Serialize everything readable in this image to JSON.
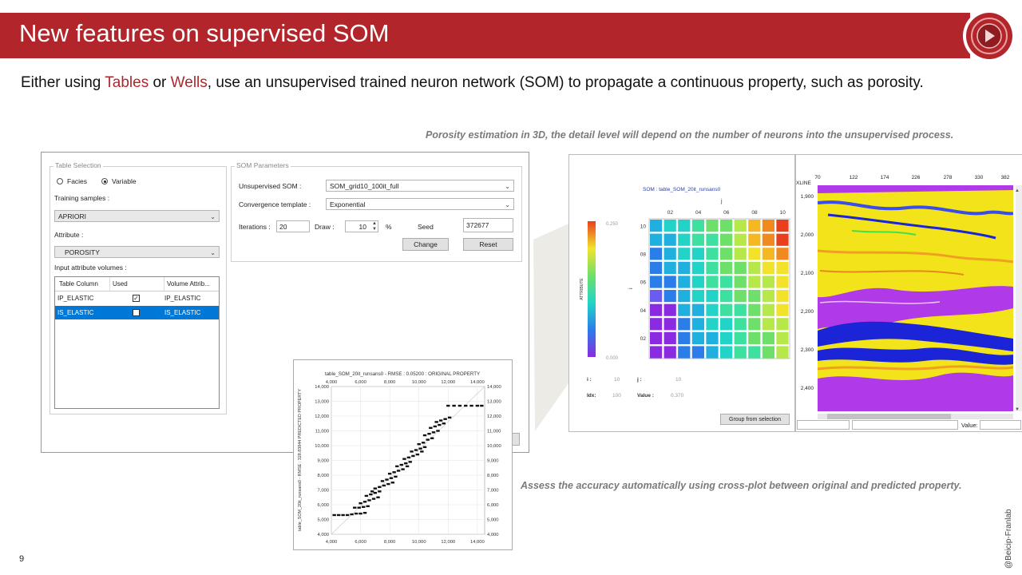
{
  "header": {
    "title": "New features on supervised SOM"
  },
  "intro": {
    "part1": "Either using ",
    "tables": "Tables",
    "part2": " or ",
    "wells": "Wells",
    "part3": ", use an unsupervised trained neuron network (SOM) to propagate a continuous property, such as porosity."
  },
  "caption_top": "Porosity estimation in 3D, the detail level will depend on the number of neurons into the unsupervised process.",
  "caption_bottom": "Assess the accuracy automatically using cross-plot between original and predicted property.",
  "slide_number": "9",
  "copyright": "@Beicip-Franlab",
  "dialog": {
    "table_selection": {
      "title": "Table Selection",
      "radio_facies": "Facies",
      "radio_variable": "Variable",
      "selected_mode": "Variable",
      "training_label": "Training samples :",
      "training_value": "APRIORI",
      "attribute_label": "Attribute :",
      "attribute_value": "POROSITY",
      "input_volumes_label": "Input attribute volumes :",
      "columns": [
        "Table Column",
        "Used",
        "Volume Attrib..."
      ],
      "rows": [
        {
          "column": "IP_ELASTIC",
          "used": true,
          "volume": "IP_ELASTIC",
          "selected": false
        },
        {
          "column": "IS_ELASTIC",
          "used": true,
          "volume": "IS_ELASTIC",
          "selected": true
        }
      ]
    },
    "som_parameters": {
      "title": "SOM Parameters",
      "unsupervised_label": "Unsupervised SOM :",
      "unsupervised_value": "SOM_grid10_100it_full",
      "convergence_label": "Convergence template :",
      "convergence_value": "Exponential",
      "iterations_label": "Iterations :",
      "iterations_value": "20",
      "draw_label": "Draw :",
      "draw_value": "10",
      "percent": "%",
      "seed_label": "Seed",
      "seed_value": "372677",
      "change_button": "Change",
      "reset_button": "Reset"
    }
  },
  "scatter": {
    "title": "table_SOM_20it_runsans0 - RMSE : 0.05200 : ORIGINAL PROPERTY",
    "ylabel": "table_SOM_20it_runsans0 - RMSE : 328.83844 PREDICTED PROPERTY",
    "x_ticks": [
      "4,000",
      "6,000",
      "8,000",
      "10,000",
      "12,000",
      "14,000"
    ],
    "y_ticks": [
      "14,000",
      "13,000",
      "12,000",
      "11,000",
      "10,000",
      "9,000",
      "8,000",
      "7,000",
      "6,000",
      "5,000",
      "4,000"
    ]
  },
  "chart_data": {
    "type": "scatter",
    "title": "table_SOM_20it_runsans0 - RMSE : 0.05200 : ORIGINAL PROPERTY",
    "xlabel": "",
    "ylabel": "table_SOM_20it_runsans0 - RMSE : 328.83844 PREDICTED PROPERTY",
    "xlim": [
      4000,
      14500
    ],
    "ylim": [
      4000,
      14000
    ],
    "grid": true,
    "points": [
      [
        4200,
        5300
      ],
      [
        4500,
        5300
      ],
      [
        4800,
        5300
      ],
      [
        5100,
        5300
      ],
      [
        5400,
        5350
      ],
      [
        5700,
        5400
      ],
      [
        6000,
        5400
      ],
      [
        6300,
        5450
      ],
      [
        5600,
        5800
      ],
      [
        5900,
        5800
      ],
      [
        6200,
        5850
      ],
      [
        6500,
        5900
      ],
      [
        6000,
        6100
      ],
      [
        6300,
        6200
      ],
      [
        6600,
        6300
      ],
      [
        6900,
        6400
      ],
      [
        6400,
        6600
      ],
      [
        6700,
        6700
      ],
      [
        7000,
        6800
      ],
      [
        7300,
        6900
      ],
      [
        7000,
        7100
      ],
      [
        7300,
        7200
      ],
      [
        7600,
        7300
      ],
      [
        7900,
        7400
      ],
      [
        7500,
        7600
      ],
      [
        7800,
        7700
      ],
      [
        8100,
        7800
      ],
      [
        8400,
        7900
      ],
      [
        8000,
        8100
      ],
      [
        8300,
        8200
      ],
      [
        8600,
        8300
      ],
      [
        8900,
        8400
      ],
      [
        8500,
        8600
      ],
      [
        8800,
        8700
      ],
      [
        9100,
        8800
      ],
      [
        9400,
        8900
      ],
      [
        9000,
        9100
      ],
      [
        9300,
        9200
      ],
      [
        9600,
        9300
      ],
      [
        9900,
        9400
      ],
      [
        9500,
        9600
      ],
      [
        9800,
        9700
      ],
      [
        10100,
        9800
      ],
      [
        10400,
        9900
      ],
      [
        10000,
        10100
      ],
      [
        10300,
        10200
      ],
      [
        10600,
        10400
      ],
      [
        10900,
        10500
      ],
      [
        10400,
        10700
      ],
      [
        10700,
        10800
      ],
      [
        11000,
        10900
      ],
      [
        11300,
        11000
      ],
      [
        10800,
        11200
      ],
      [
        11100,
        11300
      ],
      [
        11400,
        11400
      ],
      [
        11700,
        11500
      ],
      [
        11200,
        11600
      ],
      [
        11500,
        11700
      ],
      [
        11800,
        11800
      ],
      [
        12100,
        11900
      ],
      [
        12000,
        12700
      ],
      [
        12400,
        12700
      ],
      [
        12800,
        12700
      ],
      [
        13200,
        12700
      ],
      [
        13600,
        12700
      ],
      [
        14000,
        12700
      ],
      [
        14300,
        12700
      ],
      [
        7200,
        6500
      ],
      [
        8200,
        7500
      ],
      [
        9200,
        8600
      ],
      [
        10200,
        9600
      ],
      [
        6800,
        6900
      ]
    ]
  },
  "som": {
    "title": "SOM : table_SOM_20it_runsans0",
    "axis_j": "j",
    "axis_i": "i",
    "col_ticks": [
      "02",
      "04",
      "06",
      "08",
      "10"
    ],
    "row_ticks": [
      "10",
      "08",
      "06",
      "04",
      "02"
    ],
    "colorbar_label": "ATTRIBUTE",
    "colorbar_max": "0.250",
    "colorbar_min": "0.000",
    "i_label": "i :",
    "i_value": "10",
    "j_label": "j :",
    "j_value": "10",
    "idx_label": "Idx:",
    "idx_value": "100",
    "value_label": "Value :",
    "value_value": "0.370",
    "group_button": "Group from selection"
  },
  "seismic": {
    "xline_label": "XLINE",
    "x_ticks": [
      "70",
      "122",
      "174",
      "226",
      "278",
      "330",
      "382"
    ],
    "y_ticks": [
      "1,900",
      "2,000",
      "2,100",
      "2,200",
      "2,300",
      "2,400"
    ],
    "value_label": "Value:"
  },
  "colors": {
    "brand_red": "#b2262b",
    "selection_blue": "#0078d7"
  }
}
